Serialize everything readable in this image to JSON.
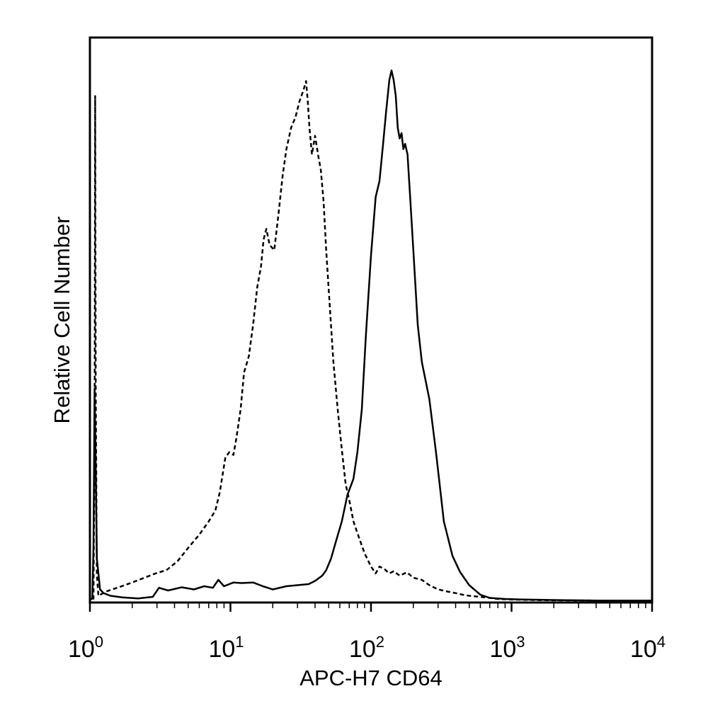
{
  "chart_data": {
    "type": "line",
    "title": "",
    "xlabel": "APC-H7 CD64",
    "ylabel": "Relative Cell Number",
    "x_scale": "log",
    "xlim": [
      1,
      10000
    ],
    "ylim": [
      0,
      100
    ],
    "grid": false,
    "legend": "none",
    "ticks": [
      {
        "base": "10",
        "exp": "0",
        "value": 1
      },
      {
        "base": "10",
        "exp": "1",
        "value": 10
      },
      {
        "base": "10",
        "exp": "2",
        "value": 100
      },
      {
        "base": "10",
        "exp": "3",
        "value": 1000
      },
      {
        "base": "10",
        "exp": "4",
        "value": 10000
      }
    ],
    "series": [
      {
        "style": "dashed",
        "color": "#000000",
        "x": [
          1.06,
          1.08,
          1.09,
          1.1,
          1.12,
          1.15,
          1.3,
          1.6,
          2.0,
          2.5,
          3.0,
          3.5,
          4.2,
          5.0,
          6.0,
          7.0,
          7.8,
          8.4,
          9.2,
          9.8,
          10.5,
          11.0,
          11.8,
          12.5,
          13.5,
          14.5,
          15.5,
          16.5,
          17.2,
          18.0,
          19.0,
          20.5,
          22.0,
          23.5,
          25.0,
          27.0,
          29.0,
          31.0,
          33.0,
          34.5,
          35.5,
          36.5,
          38.0,
          40.0,
          42.0,
          44.0,
          46.0,
          48.0,
          51.0,
          54.0,
          58.0,
          62.0,
          66.0,
          70.0,
          75.0,
          82.0,
          90.0,
          100.0,
          108.0,
          115.0,
          125.0,
          135.0,
          145.0,
          160.0,
          180.0,
          200.0,
          230.0,
          260.0,
          300.0,
          350.0,
          400.0,
          450.0,
          500.0,
          600.0,
          700.0,
          800.0,
          1000.0,
          1500.0,
          2000.0,
          4000.0,
          6000.0,
          10000.0
        ],
        "y": [
          0.3,
          30.0,
          95.0,
          40.0,
          5.0,
          1.0,
          1.8,
          2.6,
          3.5,
          4.5,
          5.3,
          5.8,
          7.5,
          10.0,
          12.5,
          15.0,
          17.0,
          20.5,
          27.0,
          28.0,
          27.5,
          30.5,
          36.0,
          43.0,
          46.0,
          52.0,
          59.0,
          63.0,
          68.0,
          70.0,
          67.0,
          66.0,
          73.0,
          80.0,
          85.0,
          89.0,
          91.0,
          94.0,
          96.0,
          97.8,
          94.0,
          89.0,
          84.0,
          87.5,
          84.0,
          81.0,
          75.0,
          66.0,
          55.0,
          45.0,
          36.0,
          28.5,
          22.0,
          19.0,
          15.0,
          12.0,
          9.0,
          6.5,
          5.2,
          6.5,
          6.0,
          5.2,
          5.6,
          4.8,
          5.4,
          4.4,
          4.0,
          3.0,
          2.2,
          1.8,
          1.5,
          1.2,
          1.0,
          0.8,
          0.6,
          0.4,
          0.3,
          0.2,
          0.15,
          0.1,
          0.1,
          0.1
        ]
      },
      {
        "style": "solid",
        "color": "#000000",
        "x": [
          1.0,
          1.04,
          1.06,
          1.08,
          1.1,
          1.12,
          1.18,
          1.25,
          1.4,
          1.7,
          2.2,
          2.8,
          3.1,
          3.6,
          4.5,
          5.5,
          6.5,
          7.5,
          8.2,
          9.0,
          10.5,
          12.0,
          14.5,
          17.0,
          20.0,
          25.0,
          30.0,
          36.0,
          40.0,
          45.0,
          48.0,
          52.0,
          56.0,
          62.0,
          68.0,
          75.0,
          80.0,
          86.0,
          92.0,
          100.0,
          108.0,
          115.0,
          122.0,
          128.0,
          135.0,
          140.0,
          145.0,
          150.0,
          155.0,
          160.0,
          165.0,
          170.0,
          175.0,
          182.0,
          190.0,
          200.0,
          215.0,
          230.0,
          260.0,
          290.0,
          330.0,
          380.0,
          430.0,
          500.0,
          600.0,
          700.0,
          900.0,
          1200.0,
          2000.0,
          4000.0,
          10000.0
        ],
        "y": [
          0.2,
          0.5,
          10.0,
          40.0,
          25.0,
          8.0,
          2.2,
          1.5,
          1.0,
          0.7,
          0.5,
          0.8,
          2.5,
          2.0,
          2.6,
          2.2,
          2.8,
          2.5,
          4.0,
          2.8,
          3.5,
          3.4,
          3.5,
          2.8,
          2.2,
          2.8,
          3.0,
          3.2,
          3.8,
          4.8,
          5.8,
          8.0,
          11.0,
          15.0,
          20.0,
          23.0,
          28.0,
          36.0,
          50.0,
          65.0,
          76.0,
          79.0,
          86.0,
          92.0,
          98.0,
          99.8,
          98.0,
          95.0,
          89.0,
          87.0,
          88.0,
          85.0,
          86.0,
          84.0,
          76.0,
          66.0,
          52.0,
          45.0,
          38.0,
          28.0,
          15.0,
          8.5,
          5.5,
          3.0,
          1.2,
          0.6,
          0.4,
          0.3,
          0.2,
          0.1,
          0.1
        ]
      }
    ]
  }
}
